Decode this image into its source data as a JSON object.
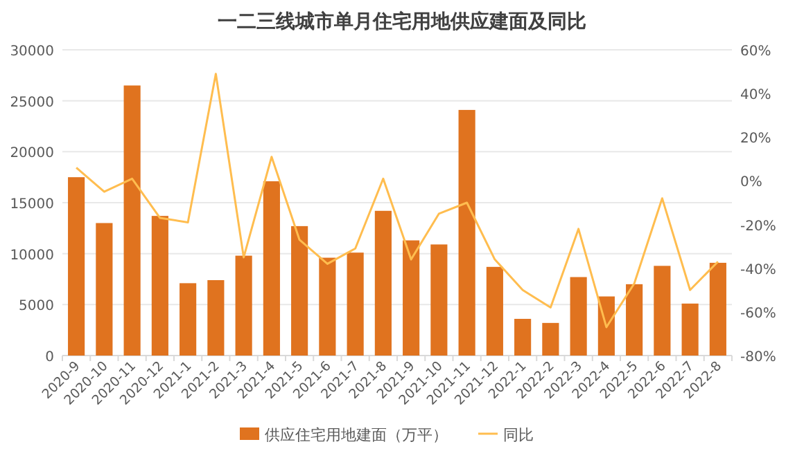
{
  "chart_data": {
    "type": "bar",
    "title": "一二三线城市单月住宅用地供应建面及同比",
    "categories": [
      "2020-9",
      "2020-10",
      "2020-11",
      "2020-12",
      "2021-1",
      "2021-2",
      "2021-3",
      "2021-4",
      "2021-5",
      "2021-6",
      "2021-7",
      "2021-8",
      "2021-9",
      "2021-10",
      "2021-11",
      "2021-12",
      "2022-1",
      "2022-2",
      "2022-3",
      "2022-4",
      "2022-5",
      "2022-6",
      "2022-7",
      "2022-8"
    ],
    "series": [
      {
        "name": "供应住宅用地建面（万平）",
        "color": "#e0731f",
        "values": [
          17500,
          13000,
          26500,
          13700,
          7100,
          7400,
          9800,
          17100,
          12700,
          9600,
          10100,
          14200,
          11300,
          10900,
          24100,
          8700,
          3600,
          3200,
          7700,
          5800,
          7000,
          8800,
          5100,
          9100
        ]
      },
      {
        "name": "同比",
        "type": "line",
        "axis": "y2",
        "color": "#ffbd4f",
        "values": [
          6,
          -5,
          1,
          -17,
          -19,
          49,
          -35,
          11,
          -27,
          -38,
          -31,
          1,
          -36,
          -15,
          -10,
          -36,
          -50,
          -58,
          -22,
          -67,
          -47,
          -8,
          -50,
          -37
        ]
      }
    ],
    "ylim": [
      0,
      30000
    ],
    "yticks": [
      0,
      5000,
      10000,
      15000,
      20000,
      25000,
      30000
    ],
    "y2lim": [
      -80,
      60
    ],
    "y2ticks": [
      {
        "value": -80,
        "label": "-80%"
      },
      {
        "value": -60,
        "label": "-60%"
      },
      {
        "value": -40,
        "label": "-40%"
      },
      {
        "value": -20,
        "label": "-20%"
      },
      {
        "value": 0,
        "label": "0%"
      },
      {
        "value": 20,
        "label": "20%"
      },
      {
        "value": 40,
        "label": "40%"
      },
      {
        "value": 60,
        "label": "60%"
      }
    ],
    "grid": "y",
    "legend": "bottom"
  }
}
